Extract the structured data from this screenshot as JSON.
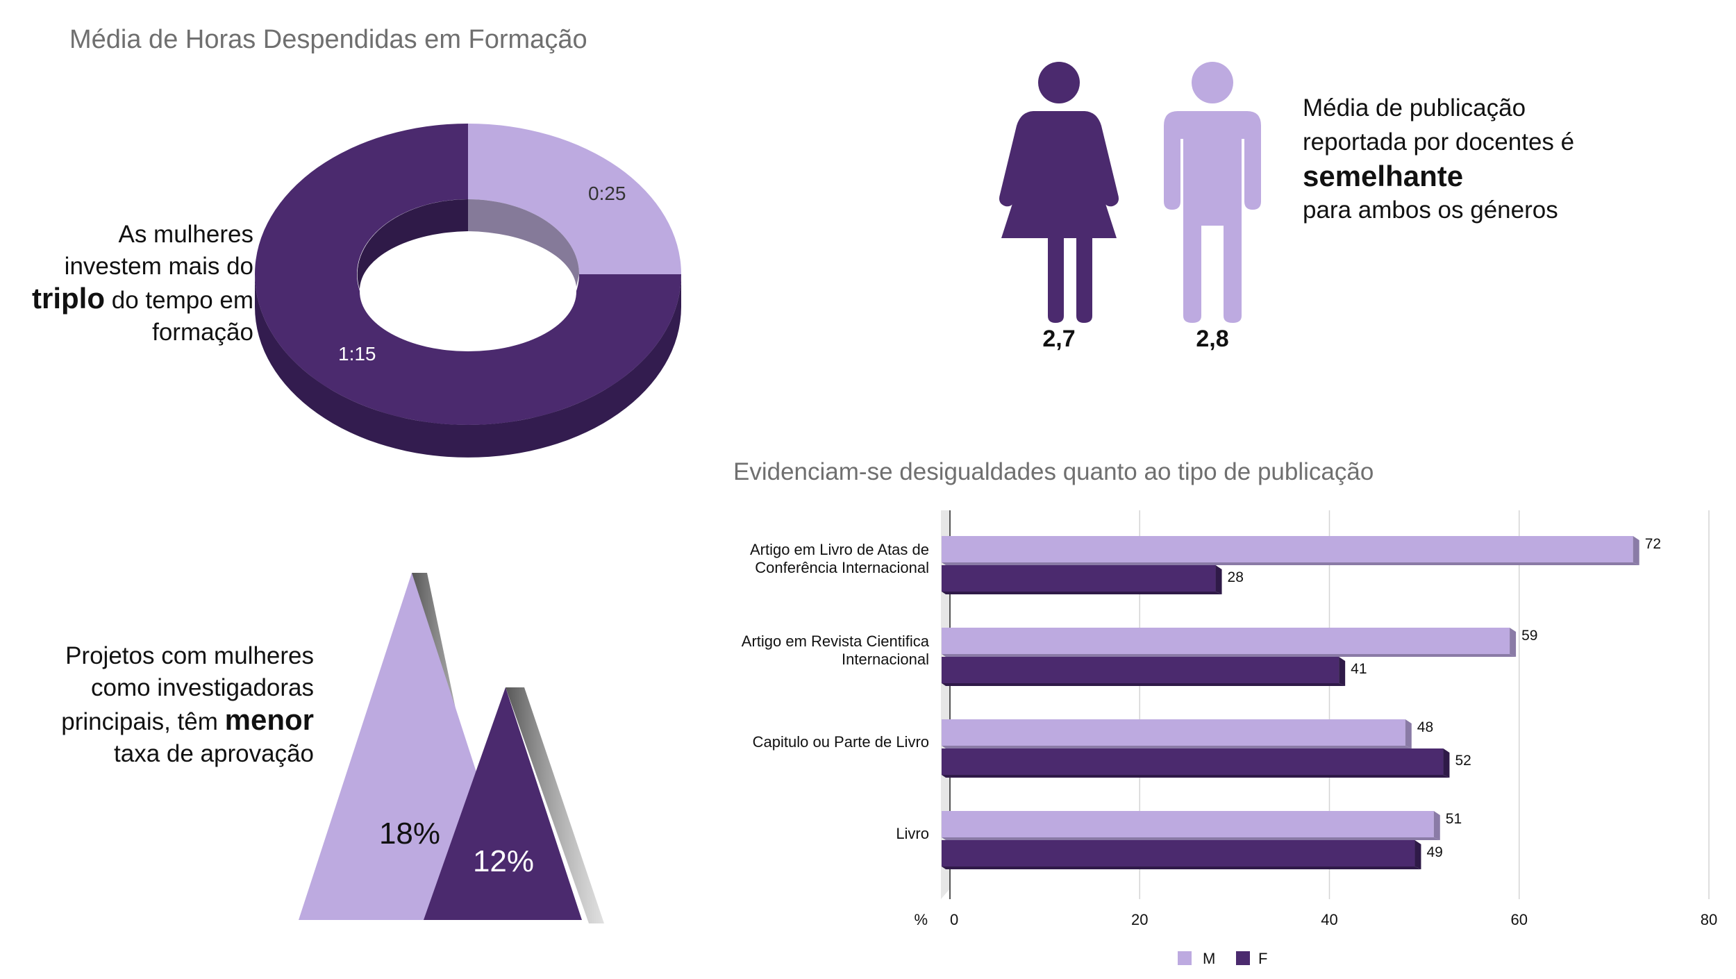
{
  "colors": {
    "light": "#bdaae0",
    "dark": "#4b2a6e",
    "darkside": "#331c4f",
    "lightside": "#8a7ba6",
    "title": "#6f6f6f"
  },
  "training": {
    "title": "Média de Horas Despendidas em Formação",
    "text_line1": "As mulheres",
    "text_line2": "investem mais do",
    "text_bold": "triplo",
    "text_line3_rest": " do tempo em",
    "text_line4": "formação",
    "chart_data": {
      "type": "pie",
      "variant": "donut-3d",
      "slices": [
        {
          "label": "0:25",
          "value": 25,
          "color": "#bdaae0"
        },
        {
          "label": "1:15",
          "value": 75,
          "color": "#4b2a6e"
        }
      ]
    }
  },
  "publication": {
    "text_line1": "Média de publicação",
    "text_line2": "reportada por docentes é",
    "text_bold": "semelhante",
    "text_line3": "para ambos os géneros",
    "female_value": "2,7",
    "male_value": "2,8"
  },
  "projects": {
    "text_line1": "Projetos com mulheres",
    "text_line2": "como investigadoras",
    "text_line3a": "principais, têm ",
    "text_bold": "menor",
    "text_line4": "taxa de aprovação",
    "men_pct": "18%",
    "women_pct": "12%",
    "men_value": 18,
    "women_value": 12
  },
  "bar_chart": {
    "title": "Evidenciam-se desigualdades quanto ao tipo de publicação",
    "chart_data": {
      "type": "bar",
      "orientation": "horizontal",
      "categories": [
        [
          "Artigo em Livro de Atas de",
          "Conferência Internacional"
        ],
        [
          "Artigo em Revista Cientifica",
          "Internacional"
        ],
        [
          "Capitulo ou Parte de Livro"
        ],
        [
          "Livro"
        ]
      ],
      "series": [
        {
          "name": "M",
          "color": "#bdaae0",
          "values": [
            72,
            59,
            48,
            51
          ]
        },
        {
          "name": "F",
          "color": "#4b2a6e",
          "values": [
            28,
            41,
            52,
            49
          ]
        }
      ],
      "xlabel": "%",
      "xlim": [
        0,
        80
      ],
      "ticks": [
        "0",
        "20",
        "40",
        "60",
        "80"
      ],
      "grid": true,
      "legend": "bottom"
    }
  }
}
